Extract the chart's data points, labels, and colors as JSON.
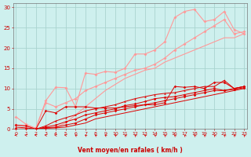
{
  "bg_color": "#cef0ee",
  "grid_color": "#aad4d0",
  "line_color_light": "#ff9999",
  "line_color_dark": "#dd0000",
  "xlabel": "Vent moyen/en rafales ( km/h )",
  "xlabel_color": "#cc0000",
  "tick_color": "#cc0000",
  "xlim": [
    0,
    23
  ],
  "ylim": [
    0,
    31
  ],
  "yticks": [
    0,
    5,
    10,
    15,
    20,
    25,
    30
  ],
  "xticks": [
    0,
    1,
    2,
    3,
    4,
    5,
    6,
    7,
    8,
    9,
    10,
    11,
    12,
    13,
    14,
    15,
    16,
    17,
    18,
    19,
    20,
    21,
    22,
    23
  ],
  "light_series": [
    {
      "x": [
        0,
        1,
        2,
        3,
        4,
        5,
        6,
        7,
        8,
        9,
        10,
        11,
        12,
        13,
        14,
        15,
        16,
        17,
        18,
        19,
        20,
        21,
        22,
        23
      ],
      "y": [
        3.0,
        1.2,
        0.2,
        7.0,
        10.3,
        10.2,
        5.5,
        13.8,
        13.5,
        14.2,
        14.0,
        15.0,
        18.5,
        18.5,
        19.5,
        21.5,
        27.5,
        29.0,
        29.5,
        26.5,
        27.0,
        29.0,
        24.5,
        23.5
      ],
      "marker": "D",
      "lw": 0.8
    },
    {
      "x": [
        0,
        1,
        2,
        3,
        4,
        5,
        6,
        7,
        8,
        9,
        10,
        11,
        12,
        13,
        14,
        15,
        16,
        17,
        18,
        19,
        20,
        21,
        22,
        23
      ],
      "y": [
        1.0,
        0.8,
        0.2,
        6.5,
        5.5,
        6.5,
        7.5,
        9.5,
        10.5,
        11.5,
        12.5,
        13.5,
        14.5,
        15.0,
        16.0,
        17.5,
        19.5,
        21.0,
        22.5,
        24.0,
        25.5,
        27.0,
        23.5,
        24.0
      ],
      "marker": "D",
      "lw": 0.8
    },
    {
      "x": [
        0,
        1,
        2,
        3,
        4,
        5,
        6,
        7,
        8,
        9,
        10,
        11,
        12,
        13,
        14,
        15,
        16,
        17,
        18,
        19,
        20,
        21,
        22,
        23
      ],
      "y": [
        0.0,
        0.3,
        0.1,
        0.2,
        0.5,
        1.5,
        3.5,
        5.5,
        7.5,
        9.5,
        11.0,
        12.5,
        13.5,
        14.5,
        15.0,
        16.5,
        17.5,
        18.5,
        19.5,
        20.5,
        21.5,
        22.5,
        22.5,
        23.5
      ],
      "marker": null,
      "lw": 0.8
    }
  ],
  "dark_series": [
    {
      "x": [
        0,
        1,
        2,
        3,
        4,
        5,
        6,
        7,
        8,
        9,
        10,
        11,
        12,
        13,
        14,
        15,
        16,
        17,
        18,
        19,
        20,
        21,
        22,
        23
      ],
      "y": [
        1.0,
        0.8,
        0.0,
        4.5,
        4.0,
        5.5,
        5.5,
        5.5,
        5.2,
        5.2,
        5.2,
        5.5,
        5.8,
        6.0,
        6.0,
        6.5,
        10.5,
        10.3,
        10.5,
        10.0,
        11.5,
        11.5,
        10.0,
        10.5
      ],
      "marker": "D"
    },
    {
      "x": [
        0,
        1,
        2,
        3,
        4,
        5,
        6,
        7,
        8,
        9,
        10,
        11,
        12,
        13,
        14,
        15,
        16,
        17,
        18,
        19,
        20,
        21,
        22,
        23
      ],
      "y": [
        0.5,
        0.3,
        0.0,
        0.8,
        2.0,
        2.8,
        3.5,
        4.5,
        5.0,
        5.5,
        6.0,
        6.8,
        7.5,
        8.0,
        8.5,
        8.8,
        9.0,
        9.5,
        10.0,
        10.5,
        10.5,
        12.0,
        10.0,
        10.5
      ],
      "marker": "^"
    },
    {
      "x": [
        0,
        1,
        2,
        3,
        4,
        5,
        6,
        7,
        8,
        9,
        10,
        11,
        12,
        13,
        14,
        15,
        16,
        17,
        18,
        19,
        20,
        21,
        22,
        23
      ],
      "y": [
        0.0,
        0.0,
        0.0,
        0.5,
        1.0,
        1.8,
        2.5,
        3.5,
        4.0,
        4.5,
        5.0,
        5.8,
        6.2,
        6.8,
        7.5,
        7.8,
        8.0,
        8.5,
        9.0,
        9.5,
        10.0,
        9.5,
        10.0,
        10.5
      ],
      "marker": "D"
    },
    {
      "x": [
        0,
        1,
        2,
        3,
        4,
        5,
        6,
        7,
        8,
        9,
        10,
        11,
        12,
        13,
        14,
        15,
        16,
        17,
        18,
        19,
        20,
        21,
        22,
        23
      ],
      "y": [
        0.0,
        0.0,
        0.0,
        0.3,
        0.5,
        1.0,
        1.5,
        2.5,
        3.5,
        4.0,
        4.5,
        5.0,
        5.5,
        6.0,
        6.5,
        7.0,
        7.5,
        8.0,
        8.5,
        9.0,
        9.5,
        9.5,
        9.8,
        10.2
      ],
      "marker": "D"
    },
    {
      "x": [
        0,
        1,
        2,
        3,
        4,
        5,
        6,
        7,
        8,
        9,
        10,
        11,
        12,
        13,
        14,
        15,
        16,
        17,
        18,
        19,
        20,
        21,
        22,
        23
      ],
      "y": [
        0.0,
        0.0,
        0.0,
        0.2,
        0.3,
        0.5,
        1.0,
        1.5,
        2.5,
        3.0,
        3.5,
        4.0,
        4.5,
        5.0,
        5.5,
        6.0,
        6.5,
        7.0,
        7.5,
        8.0,
        8.5,
        9.0,
        9.5,
        10.0
      ],
      "marker": null
    }
  ],
  "arrow_angles": [
    270,
    240,
    240,
    240,
    240,
    240,
    210,
    210,
    210,
    210,
    210,
    200,
    200,
    210,
    210,
    200,
    200,
    200,
    200,
    200,
    200,
    200,
    200,
    200
  ],
  "figsize": [
    3.2,
    2.0
  ],
  "dpi": 100
}
